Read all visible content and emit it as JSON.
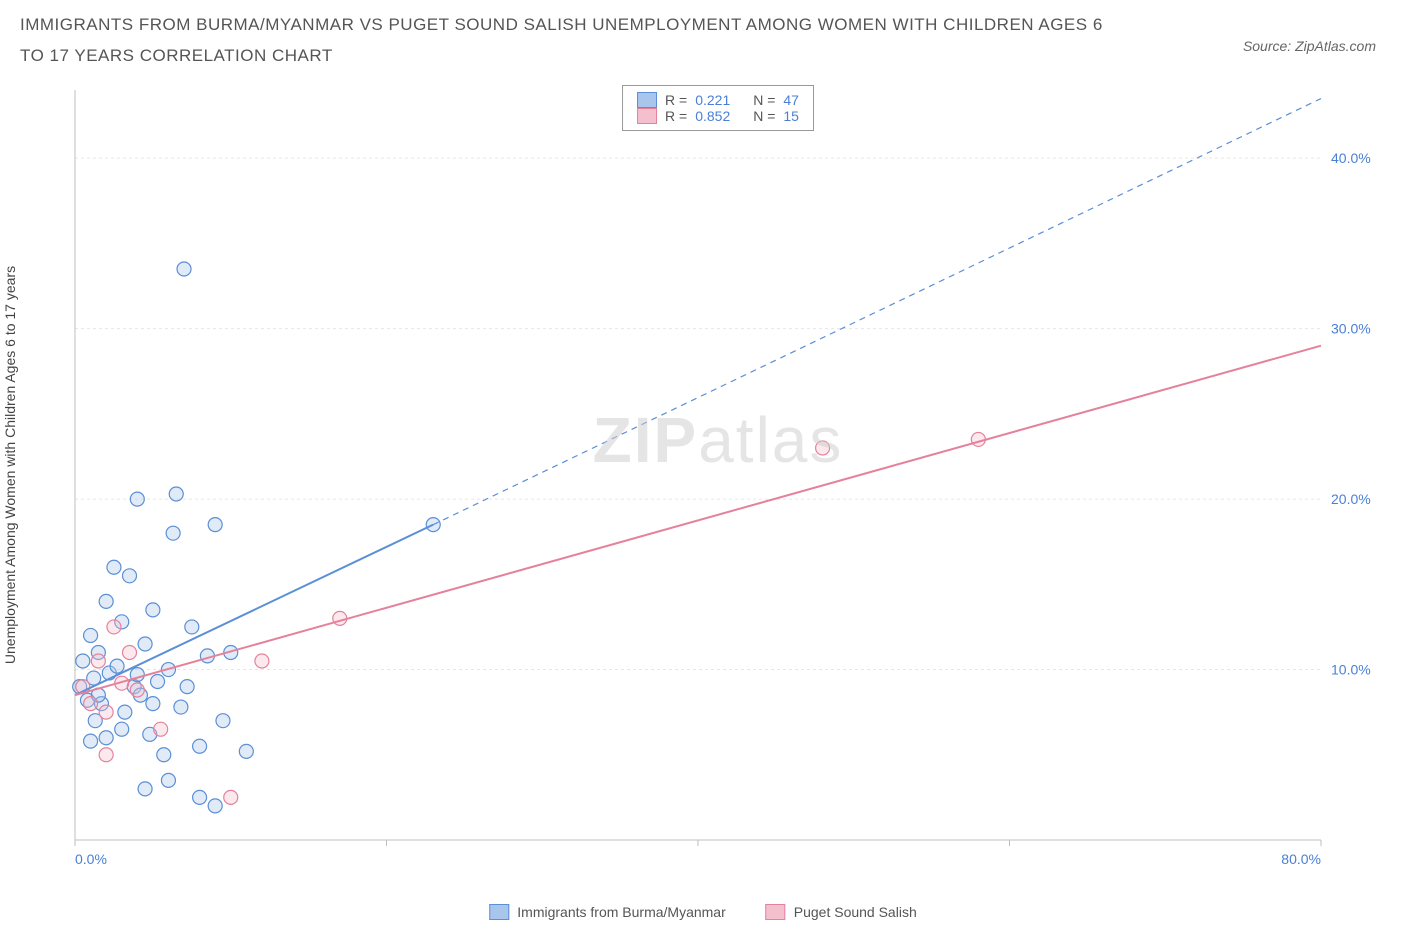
{
  "title": "IMMIGRANTS FROM BURMA/MYANMAR VS PUGET SOUND SALISH UNEMPLOYMENT AMONG WOMEN WITH CHILDREN AGES 6 TO 17 YEARS CORRELATION CHART",
  "source_prefix": "Source: ",
  "source": "ZipAtlas.com",
  "y_axis_label": "Unemployment Among Women with Children Ages 6 to 17 years",
  "watermark_a": "ZIP",
  "watermark_b": "atlas",
  "chart": {
    "type": "scatter-with-regression",
    "xlim": [
      0,
      80
    ],
    "ylim": [
      0,
      44
    ],
    "x_ticks": [
      0,
      20,
      40,
      60,
      80
    ],
    "x_tick_labels": [
      "0.0%",
      "",
      "",
      "",
      "80.0%"
    ],
    "y_ticks": [
      10,
      20,
      30,
      40
    ],
    "y_tick_labels": [
      "10.0%",
      "20.0%",
      "30.0%",
      "40.0%"
    ],
    "background_color": "#ffffff",
    "grid_color": "#e6e6e6",
    "axis_color": "#bfbfbf",
    "tick_label_color": "#4a7fd6",
    "tick_fontsize": 14,
    "marker_radius": 7,
    "marker_stroke_width": 1.2,
    "marker_fill_opacity": 0.35,
    "line_width": 2
  },
  "series": [
    {
      "id": "burma",
      "name": "Immigrants from Burma/Myanmar",
      "color": "#5b8fd6",
      "fill": "#a8c6ec",
      "R": "0.221",
      "N": "47",
      "regression": {
        "x1": 0,
        "y1": 8.5,
        "x2": 23,
        "y2": 18.5,
        "dashed_to_x": 80,
        "dashed_to_y": 43.5
      },
      "points": [
        [
          0.3,
          9.0
        ],
        [
          0.5,
          10.5
        ],
        [
          0.8,
          8.2
        ],
        [
          1.0,
          12.0
        ],
        [
          1.2,
          9.5
        ],
        [
          1.3,
          7.0
        ],
        [
          1.5,
          11.0
        ],
        [
          1.7,
          8.0
        ],
        [
          2.0,
          14.0
        ],
        [
          2.2,
          9.8
        ],
        [
          2.5,
          16.0
        ],
        [
          2.7,
          10.2
        ],
        [
          3.0,
          12.8
        ],
        [
          3.2,
          7.5
        ],
        [
          3.5,
          15.5
        ],
        [
          3.8,
          9.0
        ],
        [
          4.0,
          20.0
        ],
        [
          4.2,
          8.5
        ],
        [
          4.5,
          11.5
        ],
        [
          4.8,
          6.2
        ],
        [
          5.0,
          13.5
        ],
        [
          5.3,
          9.3
        ],
        [
          5.7,
          5.0
        ],
        [
          6.0,
          10.0
        ],
        [
          6.3,
          18.0
        ],
        [
          6.5,
          20.3
        ],
        [
          6.8,
          7.8
        ],
        [
          7.0,
          33.5
        ],
        [
          7.2,
          9.0
        ],
        [
          7.5,
          12.5
        ],
        [
          8.0,
          5.5
        ],
        [
          8.5,
          10.8
        ],
        [
          9.0,
          18.5
        ],
        [
          9.5,
          7.0
        ],
        [
          10.0,
          11.0
        ],
        [
          2.0,
          6.0
        ],
        [
          8.0,
          2.5
        ],
        [
          4.5,
          3.0
        ],
        [
          6.0,
          3.5
        ],
        [
          9.0,
          2.0
        ],
        [
          1.0,
          5.8
        ],
        [
          3.0,
          6.5
        ],
        [
          11.0,
          5.2
        ],
        [
          4.0,
          9.7
        ],
        [
          1.5,
          8.5
        ],
        [
          23.0,
          18.5
        ],
        [
          5.0,
          8.0
        ]
      ]
    },
    {
      "id": "salish",
      "name": "Puget Sound Salish",
      "color": "#e5829b",
      "fill": "#f4c0ce",
      "R": "0.852",
      "N": "15",
      "regression": {
        "x1": 0,
        "y1": 8.5,
        "x2": 80,
        "y2": 29.0
      },
      "points": [
        [
          0.5,
          9.0
        ],
        [
          1.0,
          8.0
        ],
        [
          1.5,
          10.5
        ],
        [
          2.0,
          7.5
        ],
        [
          2.5,
          12.5
        ],
        [
          3.0,
          9.2
        ],
        [
          3.5,
          11.0
        ],
        [
          4.0,
          8.8
        ],
        [
          5.5,
          6.5
        ],
        [
          10.0,
          2.5
        ],
        [
          12.0,
          10.5
        ],
        [
          17.0,
          13.0
        ],
        [
          48.0,
          23.0
        ],
        [
          58.0,
          23.5
        ],
        [
          2.0,
          5.0
        ]
      ]
    }
  ],
  "legend_labels": {
    "R": "R =",
    "N": "N ="
  }
}
